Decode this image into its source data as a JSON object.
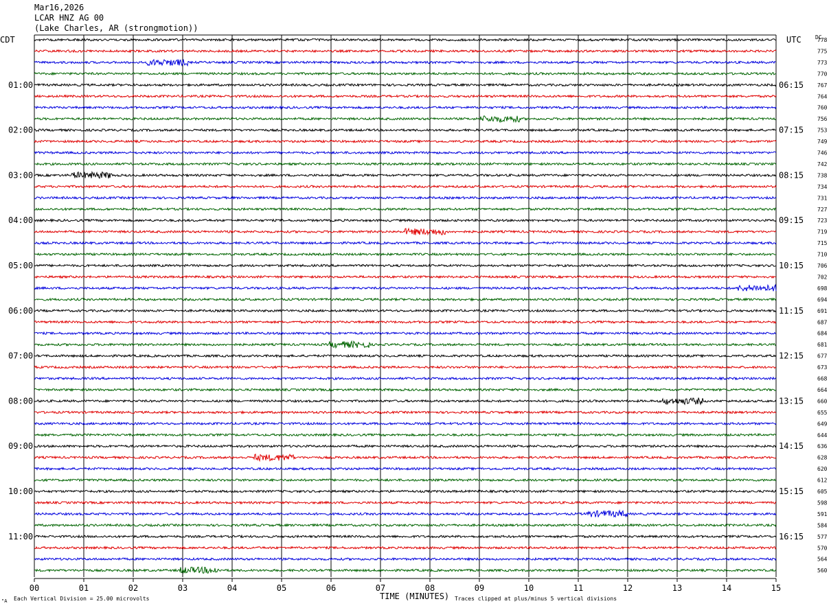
{
  "header": {
    "date": "Mar16,2026",
    "station": "LCAR HNZ AG 00",
    "location": "(Lake Charles, AR (strongmotion))"
  },
  "left_axis_label": "CDT",
  "right_axis_label": "UTC",
  "dc_label": "DC",
  "footer": {
    "scale_note": "Each Vertical Division =   25.00 microvolts",
    "xlabel": "TIME (MINUTES)",
    "clip_note": "Traces clipped at plus/minus 5 vertical divisions",
    "corner_mark": "\"A"
  },
  "colors": {
    "black": "#000000",
    "red": "#e00000",
    "blue": "#0000dd",
    "green": "#006400",
    "grid": "#000000"
  },
  "chart_data": {
    "type": "line",
    "title": "LCAR HNZ AG 00",
    "xlabel": "TIME (MINUTES)",
    "ylabel": "",
    "xlim": [
      0,
      15
    ],
    "x_ticks": [
      "00",
      "01",
      "02",
      "03",
      "04",
      "05",
      "06",
      "07",
      "08",
      "09",
      "10",
      "11",
      "12",
      "13",
      "14",
      "15"
    ],
    "trace_minutes": 15,
    "trace_color_cycle": [
      "black",
      "red",
      "blue",
      "green"
    ],
    "hour_labels_cdt": [
      "01:00",
      "02:00",
      "03:00",
      "04:00",
      "05:00",
      "06:00",
      "07:00",
      "08:00",
      "09:00",
      "10:00",
      "11:00"
    ],
    "hour_labels_utc": [
      "06:15",
      "07:15",
      "08:15",
      "09:15",
      "10:15",
      "11:15",
      "12:15",
      "13:15",
      "14:15",
      "15:15",
      "16:15"
    ],
    "dc_offsets": [
      778,
      775,
      773,
      770,
      767,
      764,
      760,
      756,
      753,
      749,
      746,
      742,
      738,
      734,
      731,
      727,
      723,
      719,
      715,
      710,
      706,
      702,
      698,
      694,
      691,
      687,
      684,
      681,
      677,
      673,
      668,
      664,
      660,
      655,
      649,
      644,
      636,
      628,
      620,
      612,
      605,
      598,
      591,
      584,
      577,
      570,
      564,
      560
    ],
    "grid": true
  }
}
